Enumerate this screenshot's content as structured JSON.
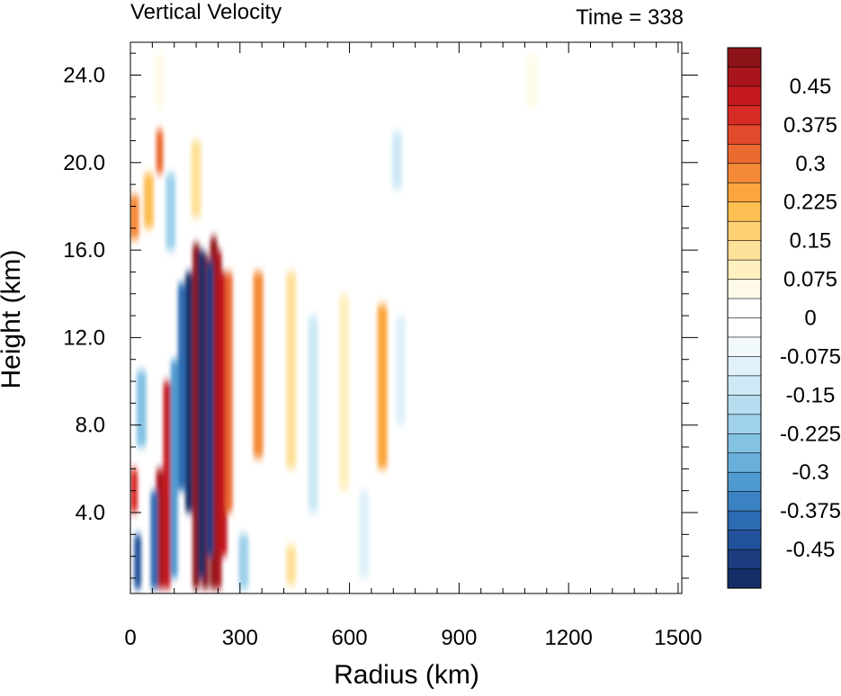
{
  "chart_data": {
    "type": "heatmap",
    "title": "Vertical Velocity",
    "subtitle": "Time = 338",
    "xlabel": "Radius (km)",
    "ylabel": "Height (km)",
    "xlim": [
      0,
      1510
    ],
    "ylim": [
      0.3,
      25.5
    ],
    "x_ticks": [
      "0",
      "300",
      "600",
      "900",
      "1200",
      "1500"
    ],
    "x_tick_values": [
      0,
      300,
      600,
      900,
      1200,
      1500
    ],
    "y_ticks": [
      "4.0",
      "8.0",
      "12.0",
      "16.0",
      "20.0",
      "24.0"
    ],
    "y_tick_values": [
      4,
      8,
      12,
      16,
      20,
      24
    ],
    "colorbar_labels": [
      "0.45",
      "0.375",
      "0.3",
      "0.225",
      "0.15",
      "0.075",
      "0",
      "-0.075",
      "-0.15",
      "-0.225",
      "-0.3",
      "-0.375",
      "-0.45"
    ],
    "colorbar_levels": [
      0.45,
      0.375,
      0.3,
      0.225,
      0.15,
      0.075,
      0,
      -0.075,
      -0.15,
      -0.225,
      -0.3,
      -0.375,
      -0.45
    ],
    "colorbar_colors": [
      "#8c1419",
      "#a8151c",
      "#c4191f",
      "#d72b25",
      "#e24a2b",
      "#eb6a31",
      "#f48a38",
      "#fba63d",
      "#fdbe52",
      "#fed174",
      "#fee199",
      "#fff0bf",
      "#fffae8",
      "#ffffff",
      "#ffffff",
      "#f2f9fd",
      "#e0f1f9",
      "#cde9f5",
      "#b7def0",
      "#9ed1ea",
      "#84c2e3",
      "#68b0db",
      "#4f9ad0",
      "#3b82c2",
      "#2c6ab2",
      "#22529b",
      "#1b3d80",
      "#152d66"
    ],
    "features": [
      {
        "r": 180,
        "h0": 0.5,
        "h1": 16.3,
        "w": 0.55
      },
      {
        "r": 205,
        "h0": 0.5,
        "h1": 15.8,
        "w": 0.55
      },
      {
        "r": 228,
        "h0": 0.5,
        "h1": 16.6,
        "w": 0.55
      },
      {
        "r": 240,
        "h0": 0.5,
        "h1": 16.0,
        "w": 0.5
      },
      {
        "r": 160,
        "h0": 4.0,
        "h1": 15.0,
        "w": -0.55
      },
      {
        "r": 195,
        "h0": 1.0,
        "h1": 16.0,
        "w": -0.55
      },
      {
        "r": 218,
        "h0": 2.0,
        "h1": 15.5,
        "w": -0.5
      },
      {
        "r": 255,
        "h0": 2.0,
        "h1": 15.0,
        "w": 0.45
      },
      {
        "r": 270,
        "h0": 4.0,
        "h1": 15.0,
        "w": 0.35
      },
      {
        "r": 140,
        "h0": 5.0,
        "h1": 14.5,
        "w": -0.4
      },
      {
        "r": 120,
        "h0": 1.0,
        "h1": 11.0,
        "w": -0.35
      },
      {
        "r": 100,
        "h0": 0.5,
        "h1": 10.0,
        "w": 0.45
      },
      {
        "r": 80,
        "h0": 0.5,
        "h1": 6.0,
        "w": 0.5
      },
      {
        "r": 65,
        "h0": 0.5,
        "h1": 5.0,
        "w": -0.4
      },
      {
        "r": 20,
        "h0": 0.5,
        "h1": 3.0,
        "w": -0.45
      },
      {
        "r": 350,
        "h0": 6.5,
        "h1": 15.0,
        "w": 0.3
      },
      {
        "r": 690,
        "h0": 6.0,
        "h1": 13.5,
        "w": 0.25
      },
      {
        "r": 500,
        "h0": 4.0,
        "h1": 13.0,
        "w": -0.12
      },
      {
        "r": 440,
        "h0": 6.0,
        "h1": 15.0,
        "w": 0.12
      },
      {
        "r": 585,
        "h0": 5.0,
        "h1": 14.0,
        "w": 0.08
      },
      {
        "r": 740,
        "h0": 8.0,
        "h1": 13.0,
        "w": -0.08
      },
      {
        "r": 730,
        "h0": 18.8,
        "h1": 21.4,
        "w": -0.15
      },
      {
        "r": 80,
        "h0": 19.5,
        "h1": 21.5,
        "w": 0.35
      },
      {
        "r": 50,
        "h0": 17.0,
        "h1": 19.5,
        "w": 0.2
      },
      {
        "r": 10,
        "h0": 16.5,
        "h1": 18.5,
        "w": 0.3
      },
      {
        "r": 440,
        "h0": 0.7,
        "h1": 2.5,
        "w": 0.12
      },
      {
        "r": 640,
        "h0": 1.0,
        "h1": 5.0,
        "w": -0.1
      },
      {
        "r": 10,
        "h0": 4.0,
        "h1": 6.0,
        "w": 0.4
      },
      {
        "r": 30,
        "h0": 7.0,
        "h1": 10.5,
        "w": -0.25
      },
      {
        "r": 110,
        "h0": 16.0,
        "h1": 19.5,
        "w": -0.2
      },
      {
        "r": 310,
        "h0": 0.5,
        "h1": 3.0,
        "w": -0.2
      },
      {
        "r": 180,
        "h0": 17.5,
        "h1": 21.0,
        "w": 0.15
      },
      {
        "r": 80,
        "h0": 22.5,
        "h1": 25.0,
        "w": 0.06
      },
      {
        "r": 1100,
        "h0": 22.5,
        "h1": 25.0,
        "w": 0.05
      }
    ]
  }
}
